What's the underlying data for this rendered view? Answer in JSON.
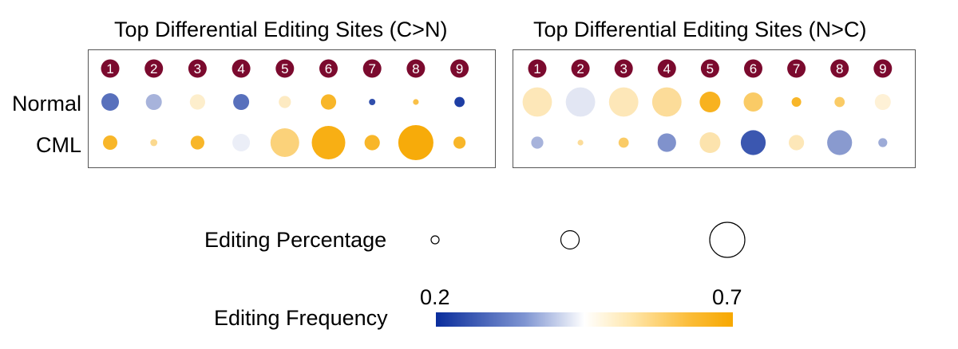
{
  "chart_data": [
    {
      "type": "bubble",
      "title": "Top Differential Editing Sites (C>N)",
      "categories": [
        "1",
        "2",
        "3",
        "4",
        "5",
        "6",
        "7",
        "8",
        "9"
      ],
      "rows": [
        "Normal",
        "CML"
      ],
      "series": [
        {
          "name": "Normal",
          "editing_percentage": [
            0.45,
            0.4,
            0.38,
            0.4,
            0.28,
            0.38,
            0.1,
            0.08,
            0.22
          ],
          "editing_frequency": [
            0.28,
            0.36,
            0.5,
            0.28,
            0.51,
            0.66,
            0.24,
            0.63,
            0.22
          ]
        },
        {
          "name": "CML",
          "editing_percentage": [
            0.35,
            0.12,
            0.33,
            0.45,
            0.8,
            0.95,
            0.38,
            1.0,
            0.28
          ],
          "editing_frequency": [
            0.66,
            0.56,
            0.66,
            0.43,
            0.58,
            0.68,
            0.66,
            0.69,
            0.66
          ]
        }
      ]
    },
    {
      "type": "bubble",
      "title": "Top Differential Editing Sites (N>C)",
      "categories": [
        "1",
        "2",
        "3",
        "4",
        "5",
        "6",
        "7",
        "8",
        "9"
      ],
      "rows": [
        "Normal",
        "CML"
      ],
      "series": [
        {
          "name": "Normal",
          "editing_percentage": [
            0.82,
            0.82,
            0.82,
            0.82,
            0.55,
            0.5,
            0.2,
            0.22,
            0.4
          ],
          "editing_frequency": [
            0.52,
            0.42,
            0.52,
            0.55,
            0.67,
            0.6,
            0.66,
            0.6,
            0.49
          ]
        },
        {
          "name": "CML",
          "editing_percentage": [
            0.28,
            0.08,
            0.22,
            0.48,
            0.55,
            0.68,
            0.38,
            0.68,
            0.18
          ],
          "editing_frequency": [
            0.36,
            0.55,
            0.6,
            0.32,
            0.53,
            0.25,
            0.52,
            0.33,
            0.35
          ]
        }
      ]
    }
  ],
  "legend": {
    "size_title": "Editing Percentage",
    "color_title": "Editing Frequency",
    "color_min": "0.2",
    "color_max": "0.7"
  },
  "colors": {
    "badge": "#7b0a2e",
    "low": "#0a2d9c",
    "mid": "#ffffff",
    "high": "#f7a800"
  }
}
